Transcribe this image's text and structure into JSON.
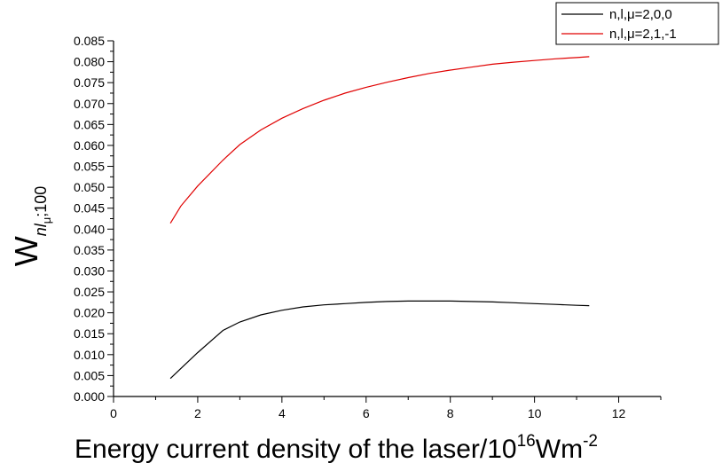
{
  "chart_data": {
    "type": "line",
    "xlabel": "Energy current density of the laser/10",
    "xlabel_exp": "16",
    "xlabel_unit": "Wm",
    "xlabel_unit_exp": "-2",
    "ylabel_main": "W",
    "ylabel_sub": "nl",
    "ylabel_sub2": "μ",
    "ylabel_sub3": ";100",
    "xlim": [
      0,
      13
    ],
    "ylim": [
      0.0,
      0.085
    ],
    "x_ticks": [
      "0",
      "2",
      "4",
      "6",
      "8",
      "10",
      "12"
    ],
    "y_ticks": [
      "0.000",
      "0.005",
      "0.010",
      "0.015",
      "0.020",
      "0.025",
      "0.030",
      "0.035",
      "0.040",
      "0.045",
      "0.050",
      "0.055",
      "0.060",
      "0.065",
      "0.070",
      "0.075",
      "0.080",
      "0.085"
    ],
    "legend_position": "top-right",
    "grid": false,
    "series": [
      {
        "name": "n,l,μ=2,0,0",
        "color": "#000000",
        "x": [
          1.35,
          1.6,
          2.0,
          2.6,
          3.0,
          3.5,
          4.0,
          4.5,
          5.0,
          5.5,
          6.0,
          6.5,
          7.0,
          7.5,
          8.0,
          8.5,
          9.0,
          9.5,
          10.0,
          10.5,
          11.0,
          11.3
        ],
        "y": [
          0.0043,
          0.0067,
          0.0105,
          0.0158,
          0.0178,
          0.0195,
          0.0206,
          0.0214,
          0.0219,
          0.0222,
          0.0225,
          0.0227,
          0.0228,
          0.0228,
          0.0228,
          0.0227,
          0.0226,
          0.0224,
          0.0222,
          0.022,
          0.0218,
          0.0217
        ]
      },
      {
        "name": "n,l,μ=2,1,-1",
        "color": "#e00000",
        "x": [
          1.35,
          1.6,
          2.0,
          2.6,
          3.0,
          3.5,
          4.0,
          4.5,
          5.0,
          5.5,
          6.0,
          6.5,
          7.0,
          7.5,
          8.0,
          8.5,
          9.0,
          9.5,
          10.0,
          10.5,
          11.0,
          11.3
        ],
        "y": [
          0.0414,
          0.0455,
          0.0503,
          0.0565,
          0.0602,
          0.0637,
          0.0665,
          0.0688,
          0.0708,
          0.0725,
          0.0739,
          0.0751,
          0.0762,
          0.0772,
          0.078,
          0.0787,
          0.0794,
          0.0799,
          0.0803,
          0.0807,
          0.081,
          0.0812
        ]
      }
    ]
  }
}
